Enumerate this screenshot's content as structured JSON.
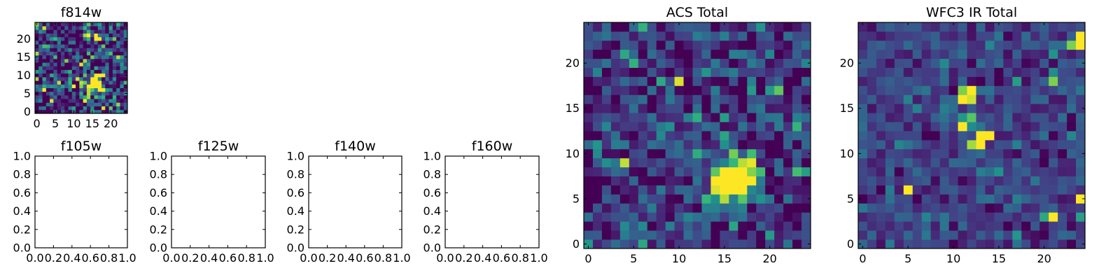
{
  "figure": {
    "colormap": "viridis"
  },
  "chart_data": [
    {
      "type": "heatmap",
      "title": "f814w",
      "grid_size": 25,
      "xlim": [
        -0.5,
        24.5
      ],
      "ylim": [
        -0.5,
        24.5
      ],
      "xticks": [
        0,
        5,
        10,
        15,
        20
      ],
      "yticks": [
        0,
        5,
        10,
        15,
        20
      ],
      "xticklabels": [
        "0",
        "5",
        "10",
        "15",
        "20"
      ],
      "yticklabels": [
        "0",
        "5",
        "10",
        "15",
        "20"
      ],
      "source": {
        "x": 16,
        "y": 7.5,
        "sigma": 1.3,
        "peak": 2.4
      },
      "noise_level": 0.42,
      "seed": 11,
      "vmin": -0.25,
      "vmax": 1.0
    },
    {
      "type": "heatmap",
      "title": "f105w",
      "empty": true,
      "xlim": [
        0,
        1
      ],
      "ylim": [
        0,
        1
      ],
      "xticks": [
        0,
        0.2,
        0.4,
        0.6,
        0.8,
        1.0
      ],
      "yticks": [
        0,
        0.2,
        0.4,
        0.6,
        0.8,
        1.0
      ],
      "xticklabels": [
        "0.0",
        "0.2",
        "0.4",
        "0.6",
        "0.8",
        "1.0"
      ],
      "yticklabels": [
        "0.0",
        "0.2",
        "0.4",
        "0.6",
        "0.8",
        "1.0"
      ]
    },
    {
      "type": "heatmap",
      "title": "f125w",
      "empty": true,
      "xlim": [
        0,
        1
      ],
      "ylim": [
        0,
        1
      ],
      "xticks": [
        0,
        0.2,
        0.4,
        0.6,
        0.8,
        1.0
      ],
      "yticks": [
        0,
        0.2,
        0.4,
        0.6,
        0.8,
        1.0
      ],
      "xticklabels": [
        "0.0",
        "0.2",
        "0.4",
        "0.6",
        "0.8",
        "1.0"
      ],
      "yticklabels": [
        "0.0",
        "0.2",
        "0.4",
        "0.6",
        "0.8",
        "1.0"
      ]
    },
    {
      "type": "heatmap",
      "title": "f140w",
      "empty": true,
      "xlim": [
        0,
        1
      ],
      "ylim": [
        0,
        1
      ],
      "xticks": [
        0,
        0.2,
        0.4,
        0.6,
        0.8,
        1.0
      ],
      "yticks": [
        0,
        0.2,
        0.4,
        0.6,
        0.8,
        1.0
      ],
      "xticklabels": [
        "0.0",
        "0.2",
        "0.4",
        "0.6",
        "0.8",
        "1.0"
      ],
      "yticklabels": [
        "0.0",
        "0.2",
        "0.4",
        "0.6",
        "0.8",
        "1.0"
      ]
    },
    {
      "type": "heatmap",
      "title": "f160w",
      "empty": true,
      "xlim": [
        0,
        1
      ],
      "ylim": [
        0,
        1
      ],
      "xticks": [
        0,
        0.2,
        0.4,
        0.6,
        0.8,
        1.0
      ],
      "yticks": [
        0,
        0.2,
        0.4,
        0.6,
        0.8,
        1.0
      ],
      "xticklabels": [
        "0.0",
        "0.2",
        "0.4",
        "0.6",
        "0.8",
        "1.0"
      ],
      "yticklabels": [
        "0.0",
        "0.2",
        "0.4",
        "0.6",
        "0.8",
        "1.0"
      ]
    },
    {
      "type": "heatmap",
      "title": "ACS Total",
      "grid_size": 25,
      "xlim": [
        -0.5,
        24.5
      ],
      "ylim": [
        -0.5,
        24.5
      ],
      "xticks": [
        0,
        5,
        10,
        15,
        20
      ],
      "yticks": [
        0,
        5,
        10,
        15,
        20
      ],
      "xticklabels": [
        "0",
        "5",
        "10",
        "15",
        "20"
      ],
      "yticklabels": [
        "0",
        "5",
        "10",
        "15",
        "20"
      ],
      "source": {
        "x": 16,
        "y": 7,
        "sigma": 1.5,
        "peak": 2.4
      },
      "noise_level": 0.28,
      "seed": 23,
      "vmin": -0.25,
      "vmax": 1.0
    },
    {
      "type": "heatmap",
      "title": "WFC3 IR Total",
      "grid_size": 25,
      "xlim": [
        -0.5,
        24.5
      ],
      "ylim": [
        -0.5,
        24.5
      ],
      "xticks": [
        0,
        5,
        10,
        15,
        20
      ],
      "yticks": [
        0,
        5,
        10,
        15,
        20
      ],
      "xticklabels": [
        "0",
        "5",
        "10",
        "15",
        "20"
      ],
      "yticklabels": [
        "0",
        "5",
        "10",
        "15",
        "20"
      ],
      "noise_level": 0.22,
      "seed": 37,
      "baseline": 0.26,
      "vmin": 0.0,
      "vmax": 1.0,
      "hot_pixels": [
        {
          "x": 11,
          "y": 17,
          "v": 0.85
        },
        {
          "x": 12,
          "y": 17,
          "v": 1.0
        },
        {
          "x": 11,
          "y": 16,
          "v": 1.0
        },
        {
          "x": 12,
          "y": 16,
          "v": 0.95
        },
        {
          "x": 12,
          "y": 14,
          "v": 0.8
        },
        {
          "x": 11,
          "y": 13,
          "v": 1.0
        },
        {
          "x": 12,
          "y": 13,
          "v": 0.6
        },
        {
          "x": 13,
          "y": 12,
          "v": 1.0
        },
        {
          "x": 14,
          "y": 12,
          "v": 1.0
        },
        {
          "x": 12,
          "y": 11,
          "v": 0.9
        },
        {
          "x": 13,
          "y": 11,
          "v": 1.0
        },
        {
          "x": 5,
          "y": 6,
          "v": 1.0
        },
        {
          "x": 21,
          "y": 3,
          "v": 1.0
        },
        {
          "x": 20,
          "y": 3,
          "v": 0.7
        },
        {
          "x": 24,
          "y": 23,
          "v": 1.0
        },
        {
          "x": 24,
          "y": 22,
          "v": 1.0
        },
        {
          "x": 23,
          "y": 22,
          "v": 0.85
        },
        {
          "x": 24,
          "y": 5,
          "v": 1.0
        },
        {
          "x": 21,
          "y": 18,
          "v": 0.85
        },
        {
          "x": 21,
          "y": 19,
          "v": 0.6
        }
      ]
    }
  ]
}
